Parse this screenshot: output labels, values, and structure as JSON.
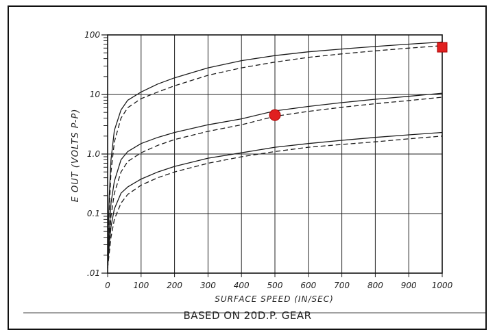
{
  "chart_data": {
    "type": "line",
    "caption": "BASED ON 20D.P. GEAR",
    "xlabel": "SURFACE SPEED (IN/SEC)",
    "ylabel": "E OUT (VOLTS P-P)",
    "y_scale": "log",
    "xlim": [
      0,
      1000
    ],
    "ylim": [
      0.01,
      100
    ],
    "grid": true,
    "x_ticks": [
      "0",
      "100",
      "200",
      "300",
      "400",
      "500",
      "600",
      "700",
      "800",
      "900",
      "1000"
    ],
    "y_ticks": [
      ".01",
      "0.1",
      "1.0",
      "10",
      "100"
    ],
    "series": [
      {
        "style": "solid",
        "x": [
          0,
          5,
          10,
          20,
          40,
          60,
          100,
          150,
          200,
          300,
          400,
          500,
          600,
          700,
          800,
          900,
          1000
        ],
        "y": [
          0.02,
          0.2,
          0.8,
          2.5,
          5.5,
          8,
          11,
          15,
          19,
          28,
          37,
          45,
          52,
          58,
          64,
          70,
          76
        ]
      },
      {
        "style": "dashed",
        "x": [
          0,
          5,
          10,
          20,
          40,
          60,
          100,
          150,
          200,
          300,
          400,
          500,
          600,
          700,
          800,
          900,
          1000
        ],
        "y": [
          0.02,
          0.12,
          0.5,
          1.6,
          4,
          6,
          8.5,
          11,
          14,
          21,
          28,
          35,
          42,
          48,
          54,
          60,
          66
        ]
      },
      {
        "style": "solid",
        "x": [
          0,
          5,
          10,
          20,
          40,
          60,
          100,
          150,
          200,
          300,
          400,
          500,
          600,
          700,
          800,
          900,
          1000
        ],
        "y": [
          0.015,
          0.05,
          0.15,
          0.35,
          0.8,
          1.1,
          1.5,
          1.9,
          2.3,
          3.1,
          3.9,
          5.3,
          6.3,
          7.3,
          8.3,
          9.3,
          10.5
        ]
      },
      {
        "style": "dashed",
        "x": [
          0,
          5,
          10,
          20,
          40,
          60,
          100,
          150,
          200,
          300,
          400,
          500,
          600,
          700,
          800,
          900,
          1000
        ],
        "y": [
          0.015,
          0.035,
          0.09,
          0.22,
          0.5,
          0.75,
          1.05,
          1.4,
          1.75,
          2.4,
          3.1,
          4.3,
          5.2,
          6.1,
          7,
          7.9,
          9
        ]
      },
      {
        "style": "solid",
        "x": [
          0,
          5,
          10,
          20,
          40,
          60,
          100,
          150,
          200,
          300,
          400,
          500,
          600,
          700,
          800,
          900,
          1000
        ],
        "y": [
          0.012,
          0.03,
          0.06,
          0.12,
          0.22,
          0.28,
          0.38,
          0.5,
          0.62,
          0.85,
          1.05,
          1.3,
          1.5,
          1.7,
          1.9,
          2.1,
          2.3
        ]
      },
      {
        "style": "dashed",
        "x": [
          0,
          5,
          10,
          20,
          40,
          60,
          100,
          150,
          200,
          300,
          400,
          500,
          600,
          700,
          800,
          900,
          1000
        ],
        "y": [
          0.012,
          0.022,
          0.04,
          0.08,
          0.15,
          0.21,
          0.3,
          0.4,
          0.5,
          0.7,
          0.9,
          1.1,
          1.3,
          1.45,
          1.6,
          1.8,
          2
        ]
      }
    ],
    "markers": [
      {
        "shape": "circle",
        "x": 500,
        "y": 4.5,
        "color": "#e02020"
      },
      {
        "shape": "square",
        "x": 1000,
        "y": 62,
        "color": "#e02020"
      }
    ]
  }
}
